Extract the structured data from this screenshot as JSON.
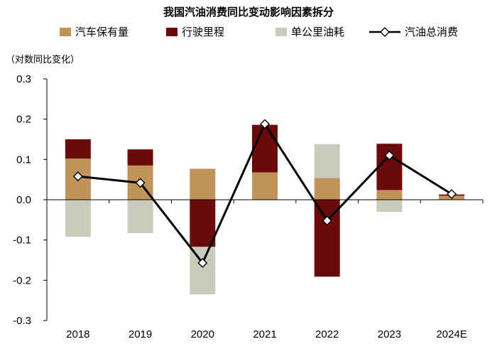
{
  "chart_data": {
    "type": "bar",
    "subtype": "stacked-bar-with-line",
    "title": "我国汽油消费同比变动影响因素拆分",
    "unit_label": "（对数同比变化）",
    "categories": [
      "2018",
      "2019",
      "2020",
      "2021",
      "2022",
      "2023",
      "2024E"
    ],
    "ylim": [
      -0.3,
      0.3
    ],
    "yticks": [
      0.3,
      0.2,
      0.1,
      0.0,
      -0.1,
      -0.2,
      -0.3
    ],
    "ytick_labels": [
      "0.3",
      "0.2",
      "0.1",
      "0.0",
      "-0.1",
      "-0.2",
      "-0.3"
    ],
    "grid": false,
    "legend_position": "top",
    "series": [
      {
        "name": "汽车保有量",
        "kind": "bar",
        "color": "#c0935a",
        "values": [
          0.102,
          0.085,
          0.077,
          0.068,
          0.054,
          0.024,
          0.01
        ]
      },
      {
        "name": "行驶里程",
        "kind": "bar",
        "color": "#6b0a0a",
        "values": [
          0.048,
          0.04,
          -0.117,
          0.118,
          -0.191,
          0.115,
          0.003
        ]
      },
      {
        "name": "单公里油耗",
        "kind": "bar",
        "color": "#cbcbbd",
        "values": [
          -0.092,
          -0.083,
          -0.118,
          0.0,
          0.084,
          -0.03,
          0.0
        ]
      },
      {
        "name": "汽油总消费",
        "kind": "line",
        "color": "#000000",
        "values": [
          0.058,
          0.042,
          -0.157,
          0.188,
          -0.052,
          0.11,
          0.014
        ]
      }
    ]
  }
}
